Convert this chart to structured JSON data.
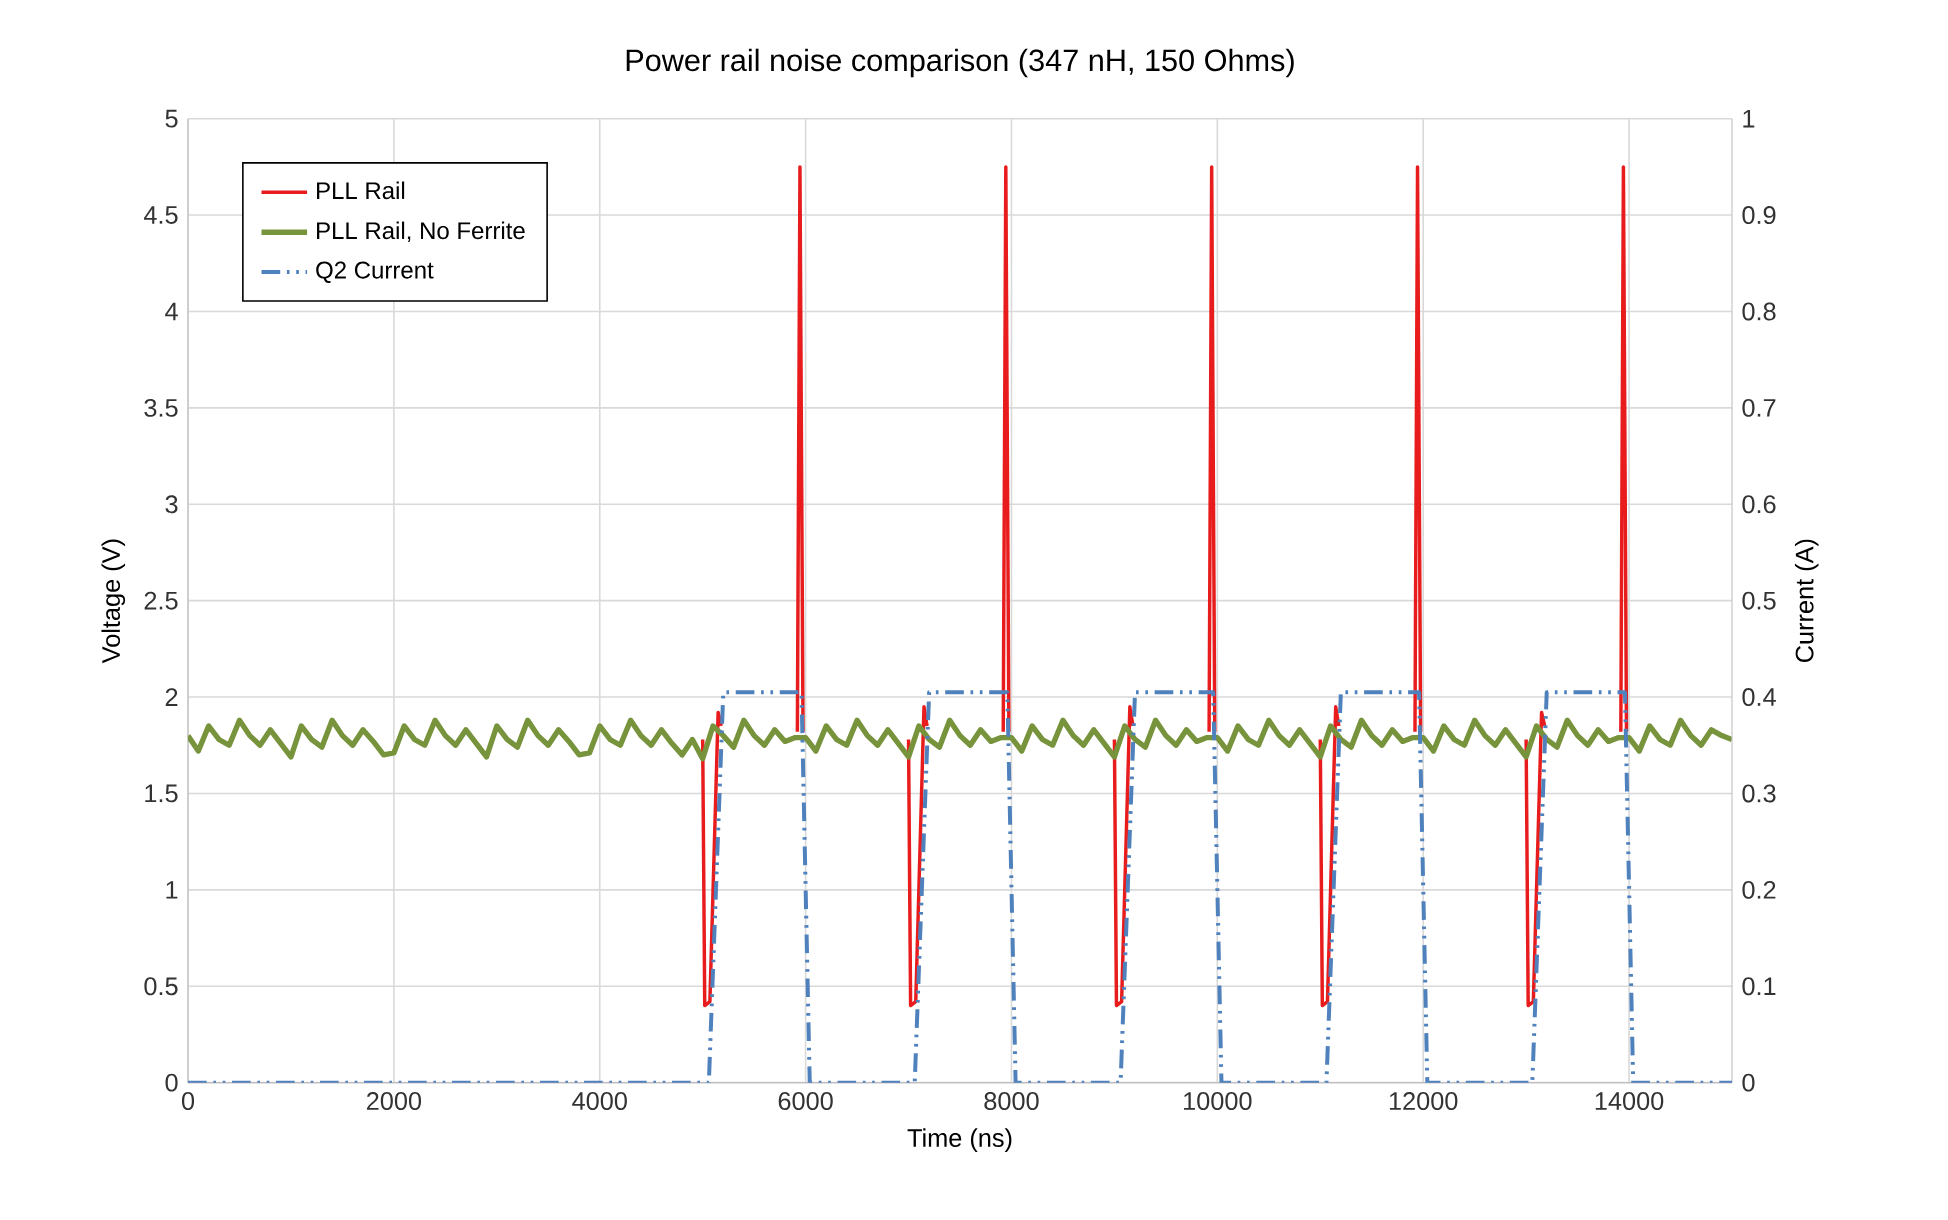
{
  "chart_data": {
    "type": "line",
    "title": "Power rail noise comparison (347 nH, 150 Ohms)",
    "xlabel": "Time (ns)",
    "ylabel": "Voltage (V)",
    "y2label": "Current (A)",
    "xlim": [
      0,
      15000
    ],
    "xticks": [
      0,
      2000,
      4000,
      6000,
      8000,
      10000,
      12000,
      14000
    ],
    "ylim": [
      0,
      5
    ],
    "yticks": [
      0,
      0.5,
      1,
      1.5,
      2,
      2.5,
      3,
      3.5,
      4,
      4.5,
      5
    ],
    "y2lim": [
      0,
      1
    ],
    "y2ticks": [
      0,
      0.1,
      0.2,
      0.3,
      0.4,
      0.5,
      0.6,
      0.7,
      0.8,
      0.9,
      1
    ],
    "grid": true,
    "legend": "top left",
    "series": [
      {
        "name": "PLL Rail",
        "color": "#e81c1c",
        "line_style": "solid",
        "x": [
          5000,
          5020,
          5070,
          5150,
          5180,
          5500,
          5920,
          5945,
          5975,
          6500,
          7000,
          7020,
          7070,
          7150,
          7180,
          7500,
          7920,
          7945,
          7975,
          8500,
          9000,
          9020,
          9070,
          9150,
          9180,
          9500,
          9920,
          9945,
          9975,
          10500,
          11000,
          11020,
          11070,
          11150,
          11180,
          11500,
          11920,
          11945,
          11975,
          12500,
          13000,
          13020,
          13070,
          13150,
          13180,
          13500,
          13920,
          13945,
          13975
        ],
        "values": [
          1.78,
          0.4,
          0.42,
          1.92,
          1.85,
          null,
          1.82,
          4.75,
          1.82,
          null,
          1.78,
          0.4,
          0.42,
          1.95,
          1.85,
          null,
          1.82,
          4.75,
          1.82,
          null,
          1.78,
          0.4,
          0.42,
          1.95,
          1.85,
          null,
          1.82,
          4.75,
          1.82,
          null,
          1.78,
          0.4,
          0.42,
          1.95,
          1.85,
          null,
          1.82,
          4.75,
          1.82,
          null,
          1.78,
          0.4,
          0.42,
          1.92,
          1.85,
          null,
          1.82,
          4.75,
          1.82
        ]
      },
      {
        "name": "PLL Rail, No Ferrite",
        "color": "#77933c",
        "line_style": "solid",
        "x": [
          0,
          100,
          200,
          300,
          400,
          500,
          600,
          700,
          800,
          900,
          1000,
          1100,
          1200,
          1300,
          1400,
          1500,
          1600,
          1700,
          1800,
          1900,
          2000,
          2100,
          2200,
          2300,
          2400,
          2500,
          2600,
          2700,
          2800,
          2900,
          3000,
          3100,
          3200,
          3300,
          3400,
          3500,
          3600,
          3700,
          3800,
          3900,
          4000,
          4100,
          4200,
          4300,
          4400,
          4500,
          4600,
          4700,
          4800,
          4900,
          5000,
          5100,
          5200,
          5300,
          5400,
          5500,
          5600,
          5700,
          5800,
          5900,
          6000,
          6100,
          6200,
          6300,
          6400,
          6500,
          6600,
          6700,
          6800,
          6900,
          7000,
          7100,
          7200,
          7300,
          7400,
          7500,
          7600,
          7700,
          7800,
          7900,
          8000,
          8100,
          8200,
          8300,
          8400,
          8500,
          8600,
          8700,
          8800,
          8900,
          9000,
          9100,
          9200,
          9300,
          9400,
          9500,
          9600,
          9700,
          9800,
          9900,
          10000,
          10100,
          10200,
          10300,
          10400,
          10500,
          10600,
          10700,
          10800,
          10900,
          11000,
          11100,
          11200,
          11300,
          11400,
          11500,
          11600,
          11700,
          11800,
          11900,
          12000,
          12100,
          12200,
          12300,
          12400,
          12500,
          12600,
          12700,
          12800,
          12900,
          13000,
          13100,
          13200,
          13300,
          13400,
          13500,
          13600,
          13700,
          13800,
          13900,
          14000,
          14100,
          14200,
          14300,
          14400,
          14500,
          14600,
          14700,
          14800,
          14900,
          15000
        ],
        "values": [
          1.8,
          1.72,
          1.85,
          1.78,
          1.75,
          1.88,
          1.8,
          1.75,
          1.83,
          1.76,
          1.69,
          1.85,
          1.78,
          1.74,
          1.88,
          1.8,
          1.75,
          1.83,
          1.77,
          1.7,
          1.71,
          1.85,
          1.78,
          1.75,
          1.88,
          1.8,
          1.75,
          1.83,
          1.76,
          1.69,
          1.85,
          1.78,
          1.74,
          1.88,
          1.8,
          1.75,
          1.83,
          1.77,
          1.7,
          1.71,
          1.85,
          1.78,
          1.75,
          1.88,
          1.8,
          1.75,
          1.83,
          1.76,
          1.7,
          1.78,
          1.68,
          1.85,
          1.8,
          1.74,
          1.88,
          1.8,
          1.75,
          1.83,
          1.77,
          1.79,
          1.79,
          1.72,
          1.85,
          1.78,
          1.75,
          1.88,
          1.8,
          1.75,
          1.83,
          1.76,
          1.69,
          1.85,
          1.78,
          1.74,
          1.88,
          1.8,
          1.75,
          1.83,
          1.77,
          1.79,
          1.79,
          1.72,
          1.85,
          1.78,
          1.75,
          1.88,
          1.8,
          1.75,
          1.83,
          1.76,
          1.69,
          1.85,
          1.78,
          1.74,
          1.88,
          1.8,
          1.75,
          1.83,
          1.77,
          1.79,
          1.79,
          1.72,
          1.85,
          1.78,
          1.75,
          1.88,
          1.8,
          1.75,
          1.83,
          1.76,
          1.69,
          1.85,
          1.78,
          1.74,
          1.88,
          1.8,
          1.75,
          1.83,
          1.77,
          1.79,
          1.79,
          1.72,
          1.85,
          1.78,
          1.75,
          1.88,
          1.8,
          1.75,
          1.83,
          1.76,
          1.69,
          1.85,
          1.78,
          1.74,
          1.88,
          1.8,
          1.75,
          1.83,
          1.77,
          1.79,
          1.79,
          1.72,
          1.85,
          1.78,
          1.75,
          1.88,
          1.8,
          1.75,
          1.83,
          1.8,
          1.78
        ]
      },
      {
        "name": "Q2 Current",
        "color": "#4f81bd",
        "line_style": "dashed",
        "axis": "y2",
        "x": [
          0,
          5060,
          5200,
          5960,
          6040,
          7060,
          7200,
          7960,
          8040,
          9060,
          9200,
          9960,
          10040,
          11060,
          11200,
          11960,
          12040,
          13060,
          13200,
          13960,
          14040,
          15000
        ],
        "values": [
          0,
          0,
          0.405,
          0.405,
          0,
          0,
          0.405,
          0.405,
          0,
          0,
          0.405,
          0.405,
          0,
          0,
          0.405,
          0.405,
          0,
          0,
          0.405,
          0.405,
          0,
          0
        ]
      }
    ]
  }
}
